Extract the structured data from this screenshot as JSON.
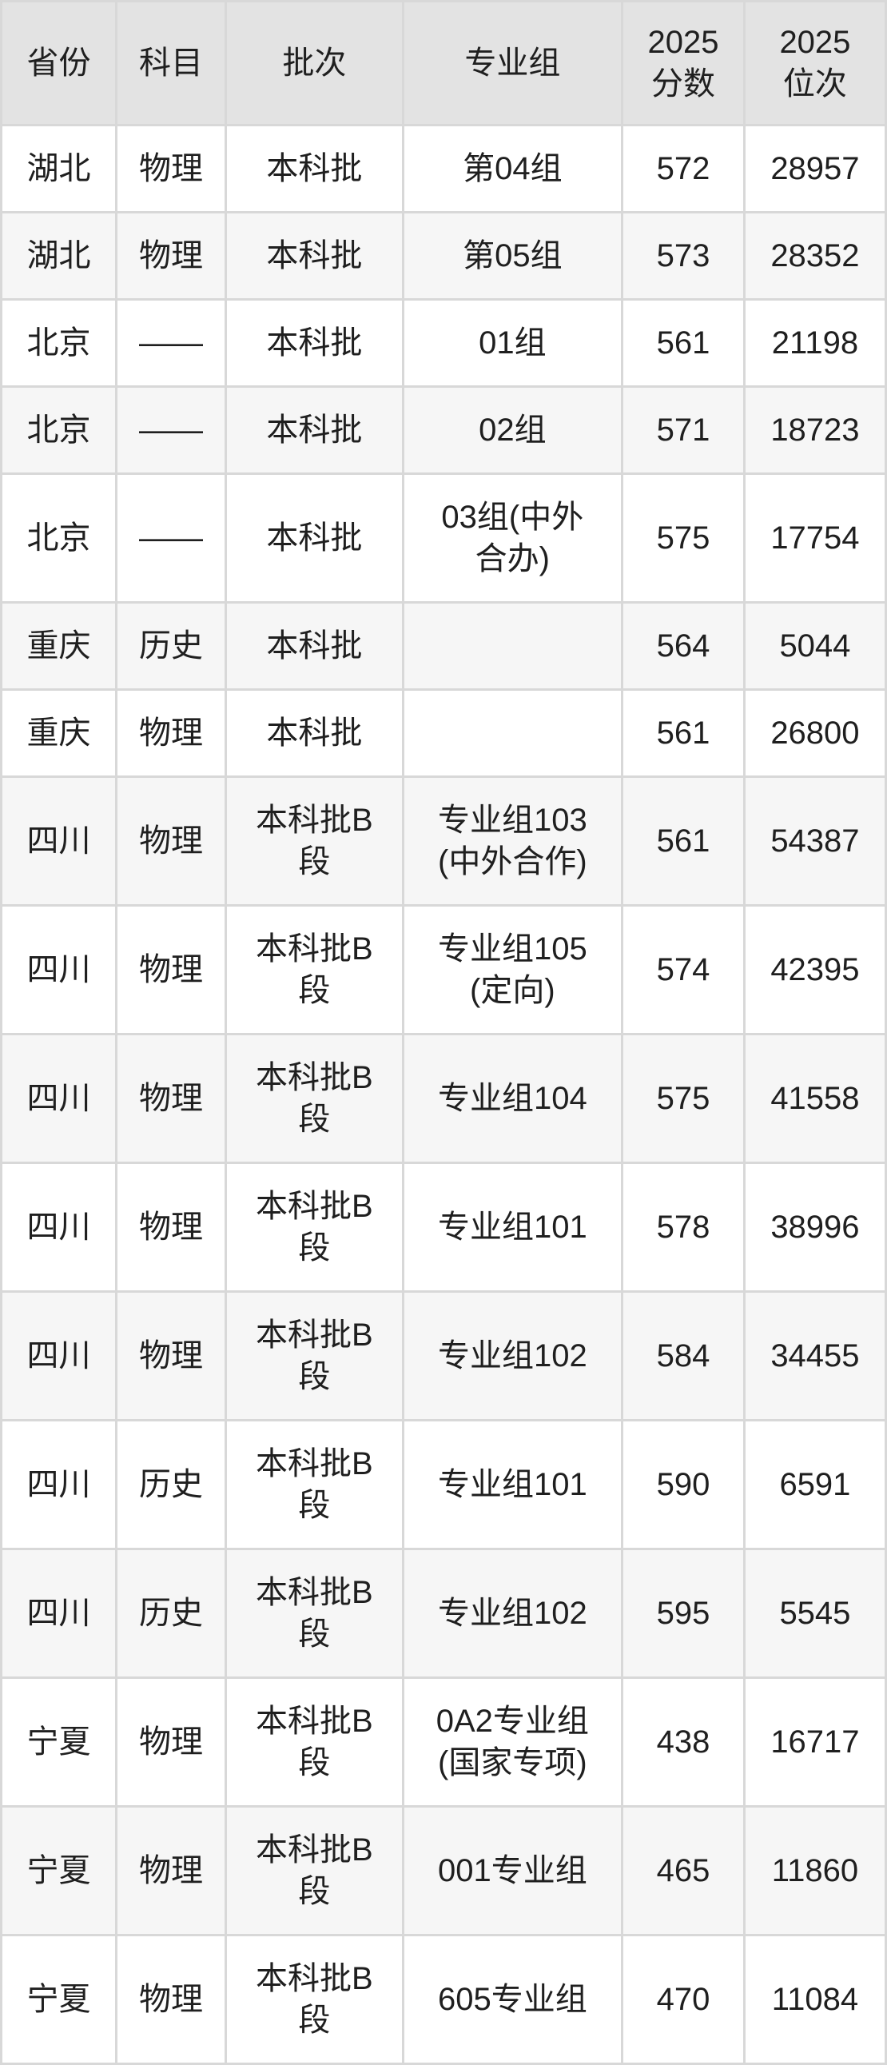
{
  "colors": {
    "header_bg": "#e3e3e3",
    "row_bg": "#ffffff",
    "row_alt_bg": "#f6f6f6",
    "border": "#d8d8d8",
    "text": "#1f1f1f"
  },
  "chart_data": {
    "type": "table",
    "title": "",
    "columns": [
      {
        "key": "province",
        "label": "省份"
      },
      {
        "key": "subject",
        "label": "科目"
      },
      {
        "key": "batch",
        "label": "批次"
      },
      {
        "key": "group",
        "label": "专业组"
      },
      {
        "key": "score2025",
        "label": "2025\n分数"
      },
      {
        "key": "rank2025",
        "label": "2025\n位次"
      }
    ],
    "rows": [
      [
        "湖北",
        "物理",
        "本科批",
        "第04组",
        "572",
        "28957"
      ],
      [
        "湖北",
        "物理",
        "本科批",
        "第05组",
        "573",
        "28352"
      ],
      [
        "北京",
        "——",
        "本科批",
        "01组",
        "561",
        "21198"
      ],
      [
        "北京",
        "——",
        "本科批",
        "02组",
        "571",
        "18723"
      ],
      [
        "北京",
        "——",
        "本科批",
        "03组(中外\n合办)",
        "575",
        "17754"
      ],
      [
        "重庆",
        "历史",
        "本科批",
        "",
        "564",
        "5044"
      ],
      [
        "重庆",
        "物理",
        "本科批",
        "",
        "561",
        "26800"
      ],
      [
        "四川",
        "物理",
        "本科批B\n段",
        "专业组103\n(中外合作)",
        "561",
        "54387"
      ],
      [
        "四川",
        "物理",
        "本科批B\n段",
        "专业组105\n(定向)",
        "574",
        "42395"
      ],
      [
        "四川",
        "物理",
        "本科批B\n段",
        "专业组104",
        "575",
        "41558"
      ],
      [
        "四川",
        "物理",
        "本科批B\n段",
        "专业组101",
        "578",
        "38996"
      ],
      [
        "四川",
        "物理",
        "本科批B\n段",
        "专业组102",
        "584",
        "34455"
      ],
      [
        "四川",
        "历史",
        "本科批B\n段",
        "专业组101",
        "590",
        "6591"
      ],
      [
        "四川",
        "历史",
        "本科批B\n段",
        "专业组102",
        "595",
        "5545"
      ],
      [
        "宁夏",
        "物理",
        "本科批B\n段",
        "0A2专业组\n(国家专项)",
        "438",
        "16717"
      ],
      [
        "宁夏",
        "物理",
        "本科批B\n段",
        "001专业组",
        "465",
        "11860"
      ],
      [
        "宁夏",
        "物理",
        "本科批B\n段",
        "605专业组",
        "470",
        "11084"
      ]
    ]
  }
}
